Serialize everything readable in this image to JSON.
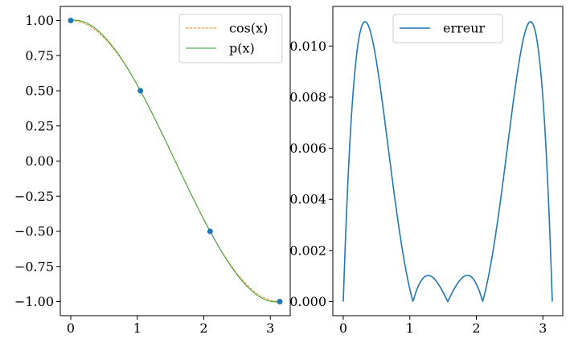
{
  "chart_data": [
    {
      "type": "line",
      "xlim": [
        -0.157,
        3.299
      ],
      "ylim": [
        -1.1,
        1.1
      ],
      "x_ticks": [
        0,
        1,
        2,
        3
      ],
      "y_ticks": [
        1.0,
        0.75,
        0.5,
        0.25,
        0.0,
        -0.25,
        -0.5,
        -0.75,
        -1.0
      ],
      "x_tick_labels": [
        "0",
        "1",
        "2",
        "3"
      ],
      "y_tick_labels": [
        "1.00",
        "0.75",
        "0.50",
        "0.25",
        "0.00",
        "−0.25",
        "−0.50",
        "−0.75",
        "−1.00"
      ],
      "legend_position": "top-right",
      "series": [
        {
          "name": "cos(x)",
          "function": "cos",
          "x_range": [
            0,
            3.1416
          ],
          "color": "#ff7f0e",
          "style": "dashed"
        },
        {
          "name": "p(x)",
          "function": "interp_cos_4nodes",
          "x_range": [
            0,
            3.1416
          ],
          "color": "#2ca02c",
          "style": "solid"
        }
      ],
      "points": {
        "x": [
          0,
          1.0472,
          2.0944,
          3.1416
        ],
        "y": [
          1.0,
          0.5,
          -0.5,
          -1.0
        ],
        "color": "#1f77b4"
      }
    },
    {
      "type": "line",
      "xlim": [
        -0.157,
        3.299
      ],
      "ylim": [
        -0.00055,
        0.01155
      ],
      "x_ticks": [
        0,
        1,
        2,
        3
      ],
      "y_ticks": [
        0.0,
        0.002,
        0.004,
        0.006,
        0.008,
        0.01
      ],
      "x_tick_labels": [
        "0",
        "1",
        "2",
        "3"
      ],
      "y_tick_labels": [
        "0.000",
        "0.002",
        "0.004",
        "0.006",
        "0.008",
        "0.010"
      ],
      "legend_position": "top-center",
      "series": [
        {
          "name": "erreur",
          "function": "abs_error",
          "x_range": [
            0,
            3.1416
          ],
          "color": "#1f77b4",
          "style": "solid"
        }
      ]
    }
  ]
}
